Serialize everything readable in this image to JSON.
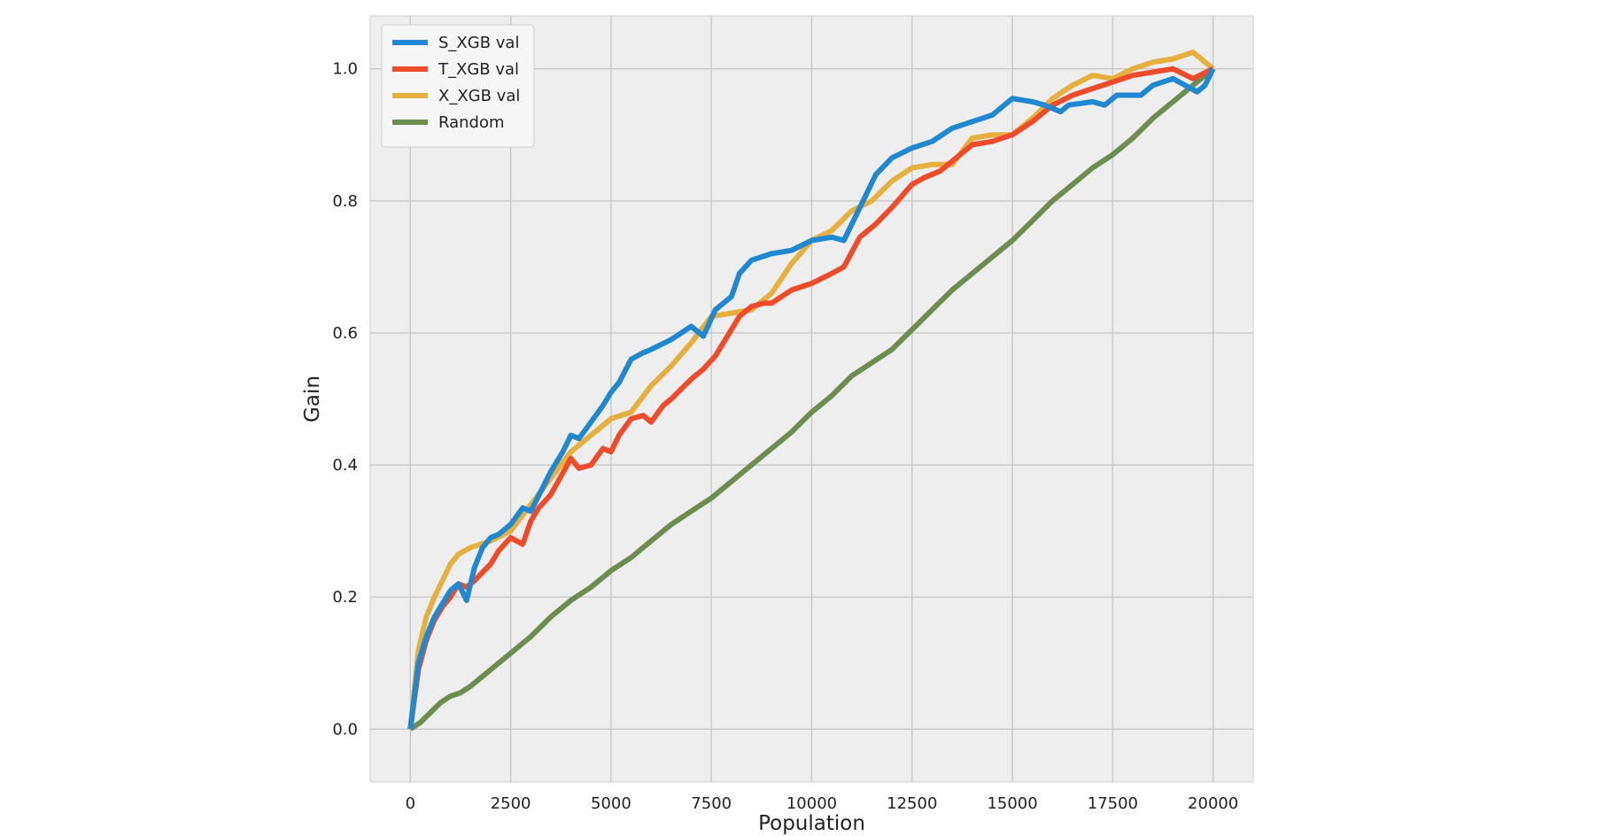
{
  "chart_data": {
    "type": "line",
    "xlabel": "Population",
    "ylabel": "Gain",
    "xlim": [
      -1000,
      21000
    ],
    "ylim": [
      -0.08,
      1.08
    ],
    "xticks": [
      0,
      2500,
      5000,
      7500,
      10000,
      12500,
      15000,
      17500,
      20000
    ],
    "xtick_labels": [
      "0",
      "2500",
      "5000",
      "7500",
      "10000",
      "12500",
      "15000",
      "17500",
      "20000"
    ],
    "yticks": [
      0.0,
      0.2,
      0.4,
      0.6,
      0.8,
      1.0
    ],
    "ytick_labels": [
      "0.0",
      "0.2",
      "0.4",
      "0.6",
      "0.8",
      "1.0"
    ],
    "grid": true,
    "legend_position": "top-left",
    "series": [
      {
        "name": "S_XGB val",
        "color": "#1f88d0",
        "x": [
          0,
          200,
          400,
          600,
          800,
          1000,
          1200,
          1400,
          1600,
          1800,
          2000,
          2200,
          2500,
          2800,
          3000,
          3500,
          3800,
          4000,
          4200,
          4500,
          4800,
          5000,
          5200,
          5500,
          5800,
          6000,
          6500,
          7000,
          7300,
          7600,
          8000,
          8200,
          8500,
          9000,
          9500,
          10000,
          10500,
          10800,
          11200,
          11600,
          12000,
          12500,
          13000,
          13500,
          14000,
          14500,
          15000,
          15500,
          15800,
          16200,
          16400,
          17000,
          17300,
          17600,
          18200,
          18500,
          19000,
          19300,
          19600,
          19800,
          20000
        ],
        "values": [
          0.0,
          0.1,
          0.14,
          0.17,
          0.19,
          0.21,
          0.22,
          0.195,
          0.245,
          0.275,
          0.29,
          0.295,
          0.31,
          0.335,
          0.33,
          0.39,
          0.42,
          0.445,
          0.44,
          0.465,
          0.49,
          0.51,
          0.525,
          0.56,
          0.57,
          0.575,
          0.59,
          0.61,
          0.595,
          0.635,
          0.655,
          0.69,
          0.71,
          0.72,
          0.725,
          0.74,
          0.745,
          0.74,
          0.79,
          0.84,
          0.865,
          0.88,
          0.89,
          0.91,
          0.92,
          0.93,
          0.955,
          0.95,
          0.945,
          0.935,
          0.945,
          0.95,
          0.945,
          0.96,
          0.96,
          0.975,
          0.985,
          0.975,
          0.965,
          0.975,
          1.0
        ]
      },
      {
        "name": "T_XGB val",
        "color": "#ee4b2b",
        "x": [
          0,
          200,
          400,
          600,
          800,
          1000,
          1200,
          1400,
          1600,
          2000,
          2200,
          2500,
          2800,
          3000,
          3200,
          3500,
          4000,
          4200,
          4500,
          4800,
          5000,
          5200,
          5500,
          5800,
          6000,
          6300,
          6500,
          7000,
          7300,
          7600,
          8000,
          8200,
          8500,
          8800,
          9000,
          9500,
          10000,
          10500,
          10800,
          11200,
          11600,
          12000,
          12500,
          12800,
          13200,
          13600,
          14000,
          14500,
          15000,
          15500,
          16000,
          16500,
          17000,
          17500,
          18000,
          18500,
          19000,
          19500,
          20000
        ],
        "values": [
          0.0,
          0.09,
          0.135,
          0.165,
          0.185,
          0.2,
          0.22,
          0.215,
          0.225,
          0.25,
          0.27,
          0.29,
          0.28,
          0.315,
          0.335,
          0.355,
          0.41,
          0.395,
          0.4,
          0.425,
          0.42,
          0.445,
          0.47,
          0.475,
          0.465,
          0.49,
          0.5,
          0.53,
          0.545,
          0.565,
          0.605,
          0.625,
          0.64,
          0.645,
          0.645,
          0.665,
          0.675,
          0.69,
          0.7,
          0.745,
          0.765,
          0.79,
          0.825,
          0.835,
          0.845,
          0.865,
          0.885,
          0.89,
          0.9,
          0.92,
          0.945,
          0.96,
          0.97,
          0.98,
          0.99,
          0.995,
          1.0,
          0.985,
          1.0
        ]
      },
      {
        "name": "X_XGB val",
        "color": "#e6b03f",
        "x": [
          0,
          200,
          400,
          600,
          800,
          1000,
          1200,
          1500,
          2000,
          2500,
          3000,
          3500,
          4000,
          4500,
          5000,
          5500,
          6000,
          6500,
          7000,
          7500,
          8000,
          8500,
          9000,
          9500,
          10000,
          10500,
          11000,
          11500,
          12000,
          12500,
          13000,
          13500,
          14000,
          14500,
          15000,
          15500,
          16000,
          16500,
          17000,
          17500,
          18000,
          18500,
          19000,
          19500,
          20000
        ],
        "values": [
          0.0,
          0.12,
          0.17,
          0.2,
          0.225,
          0.25,
          0.265,
          0.275,
          0.285,
          0.3,
          0.34,
          0.38,
          0.42,
          0.445,
          0.47,
          0.48,
          0.52,
          0.55,
          0.585,
          0.625,
          0.63,
          0.635,
          0.66,
          0.705,
          0.74,
          0.755,
          0.785,
          0.8,
          0.83,
          0.85,
          0.855,
          0.855,
          0.895,
          0.9,
          0.9,
          0.925,
          0.955,
          0.975,
          0.99,
          0.985,
          1.0,
          1.01,
          1.015,
          1.025,
          1.0
        ]
      },
      {
        "name": "Random",
        "color": "#6b8e4e",
        "x": [
          0,
          250,
          500,
          750,
          1000,
          1250,
          1500,
          2000,
          2500,
          3000,
          3500,
          4000,
          4500,
          5000,
          5500,
          6000,
          6500,
          7000,
          7500,
          8000,
          8500,
          9000,
          9500,
          10000,
          10500,
          11000,
          11500,
          12000,
          12500,
          13000,
          13500,
          14000,
          14500,
          15000,
          15500,
          16000,
          16500,
          17000,
          17500,
          18000,
          18500,
          19000,
          19500,
          20000
        ],
        "values": [
          0.0,
          0.01,
          0.025,
          0.04,
          0.05,
          0.055,
          0.065,
          0.09,
          0.115,
          0.14,
          0.17,
          0.195,
          0.215,
          0.24,
          0.26,
          0.285,
          0.31,
          0.33,
          0.35,
          0.375,
          0.4,
          0.425,
          0.45,
          0.48,
          0.505,
          0.535,
          0.555,
          0.575,
          0.605,
          0.635,
          0.665,
          0.69,
          0.715,
          0.74,
          0.77,
          0.8,
          0.825,
          0.85,
          0.87,
          0.895,
          0.925,
          0.95,
          0.975,
          1.0
        ]
      }
    ]
  }
}
